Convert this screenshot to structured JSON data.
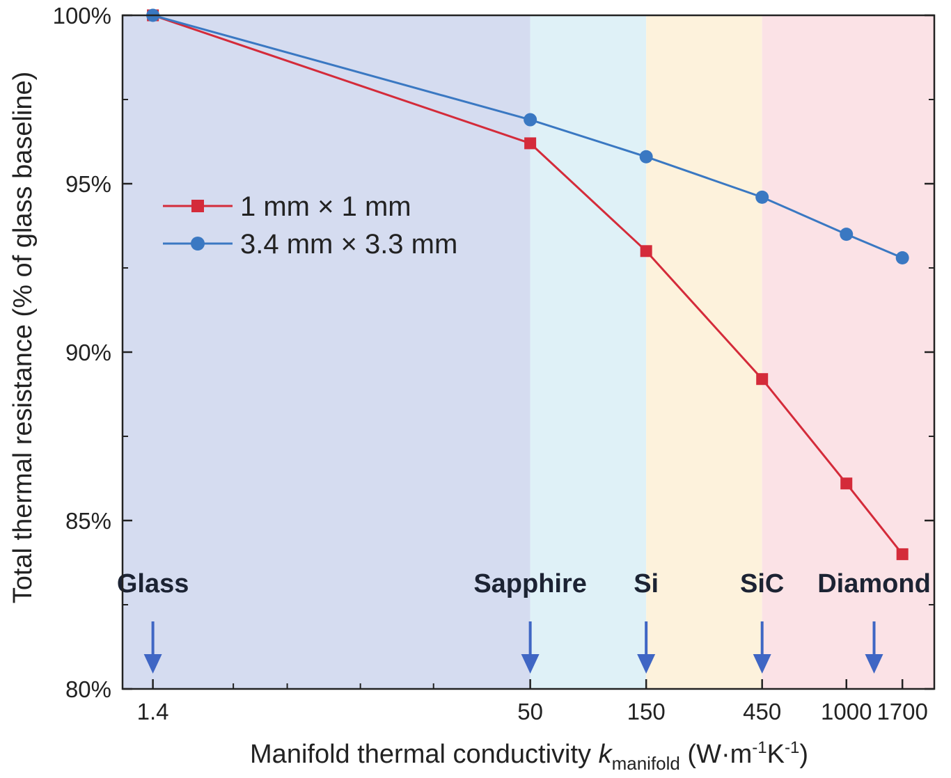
{
  "chart_data": {
    "type": "line",
    "title": "",
    "xlabel": {
      "main": "Manifold thermal conductivity ",
      "var": "k",
      "sub": "manifold",
      "units_open": " (W·m",
      "exp1": "-1",
      "units_mid": "K",
      "exp2": "-1",
      "units_close": ")"
    },
    "ylabel": "Total thermal resistance (% of glass baseline)",
    "x_scale": "log",
    "xlim": [
      1.05,
      2300
    ],
    "ylim": [
      80,
      100
    ],
    "x_ticks": [
      {
        "value": 1.4,
        "label": "1.4"
      },
      {
        "value": 50,
        "label": "50"
      },
      {
        "value": 150,
        "label": "150"
      },
      {
        "value": 450,
        "label": "450"
      },
      {
        "value": 1000,
        "label": "1000"
      },
      {
        "value": 1700,
        "label": "1700"
      }
    ],
    "y_ticks": [
      {
        "value": 80,
        "label": "80%"
      },
      {
        "value": 85,
        "label": "85%"
      },
      {
        "value": 90,
        "label": "90%"
      },
      {
        "value": 95,
        "label": "95%"
      },
      {
        "value": 100,
        "label": "100%"
      }
    ],
    "series": [
      {
        "name": "1 mm × 1 mm",
        "color": "#d42b3a",
        "marker": "square",
        "x": [
          1.4,
          50,
          150,
          450,
          1000,
          1700
        ],
        "y": [
          100,
          96.2,
          93.0,
          89.2,
          86.1,
          84.0
        ]
      },
      {
        "name": "3.4 mm × 3.3 mm",
        "color": "#3a78c2",
        "marker": "circle",
        "x": [
          1.4,
          50,
          150,
          450,
          1000,
          1700
        ],
        "y": [
          100,
          96.9,
          95.8,
          94.6,
          93.5,
          92.8
        ]
      }
    ],
    "regions": [
      {
        "name": "glass-region",
        "from": 1.05,
        "to": 50,
        "color": "#d5dcf0"
      },
      {
        "name": "sapphire-region",
        "from": 50,
        "to": 150,
        "color": "#dff1f7"
      },
      {
        "name": "si-region",
        "from": 150,
        "to": 450,
        "color": "#fdf2dc"
      },
      {
        "name": "sic-diamond-region",
        "from": 450,
        "to": 2300,
        "color": "#fbe2e6"
      }
    ],
    "materials": [
      {
        "label": "Glass",
        "arrow_at": 1.4,
        "label_at": 1.4
      },
      {
        "label": "Sapphire",
        "arrow_at": 50,
        "label_at": 50
      },
      {
        "label": "Si",
        "arrow_at": 150,
        "label_at": 150
      },
      {
        "label": "SiC",
        "arrow_at": 450,
        "label_at": 450
      },
      {
        "label": "Diamond",
        "arrow_at": 1300,
        "label_at": 1300
      }
    ],
    "arrow_color": "#3f66c4",
    "legend_position": "upper-left"
  }
}
